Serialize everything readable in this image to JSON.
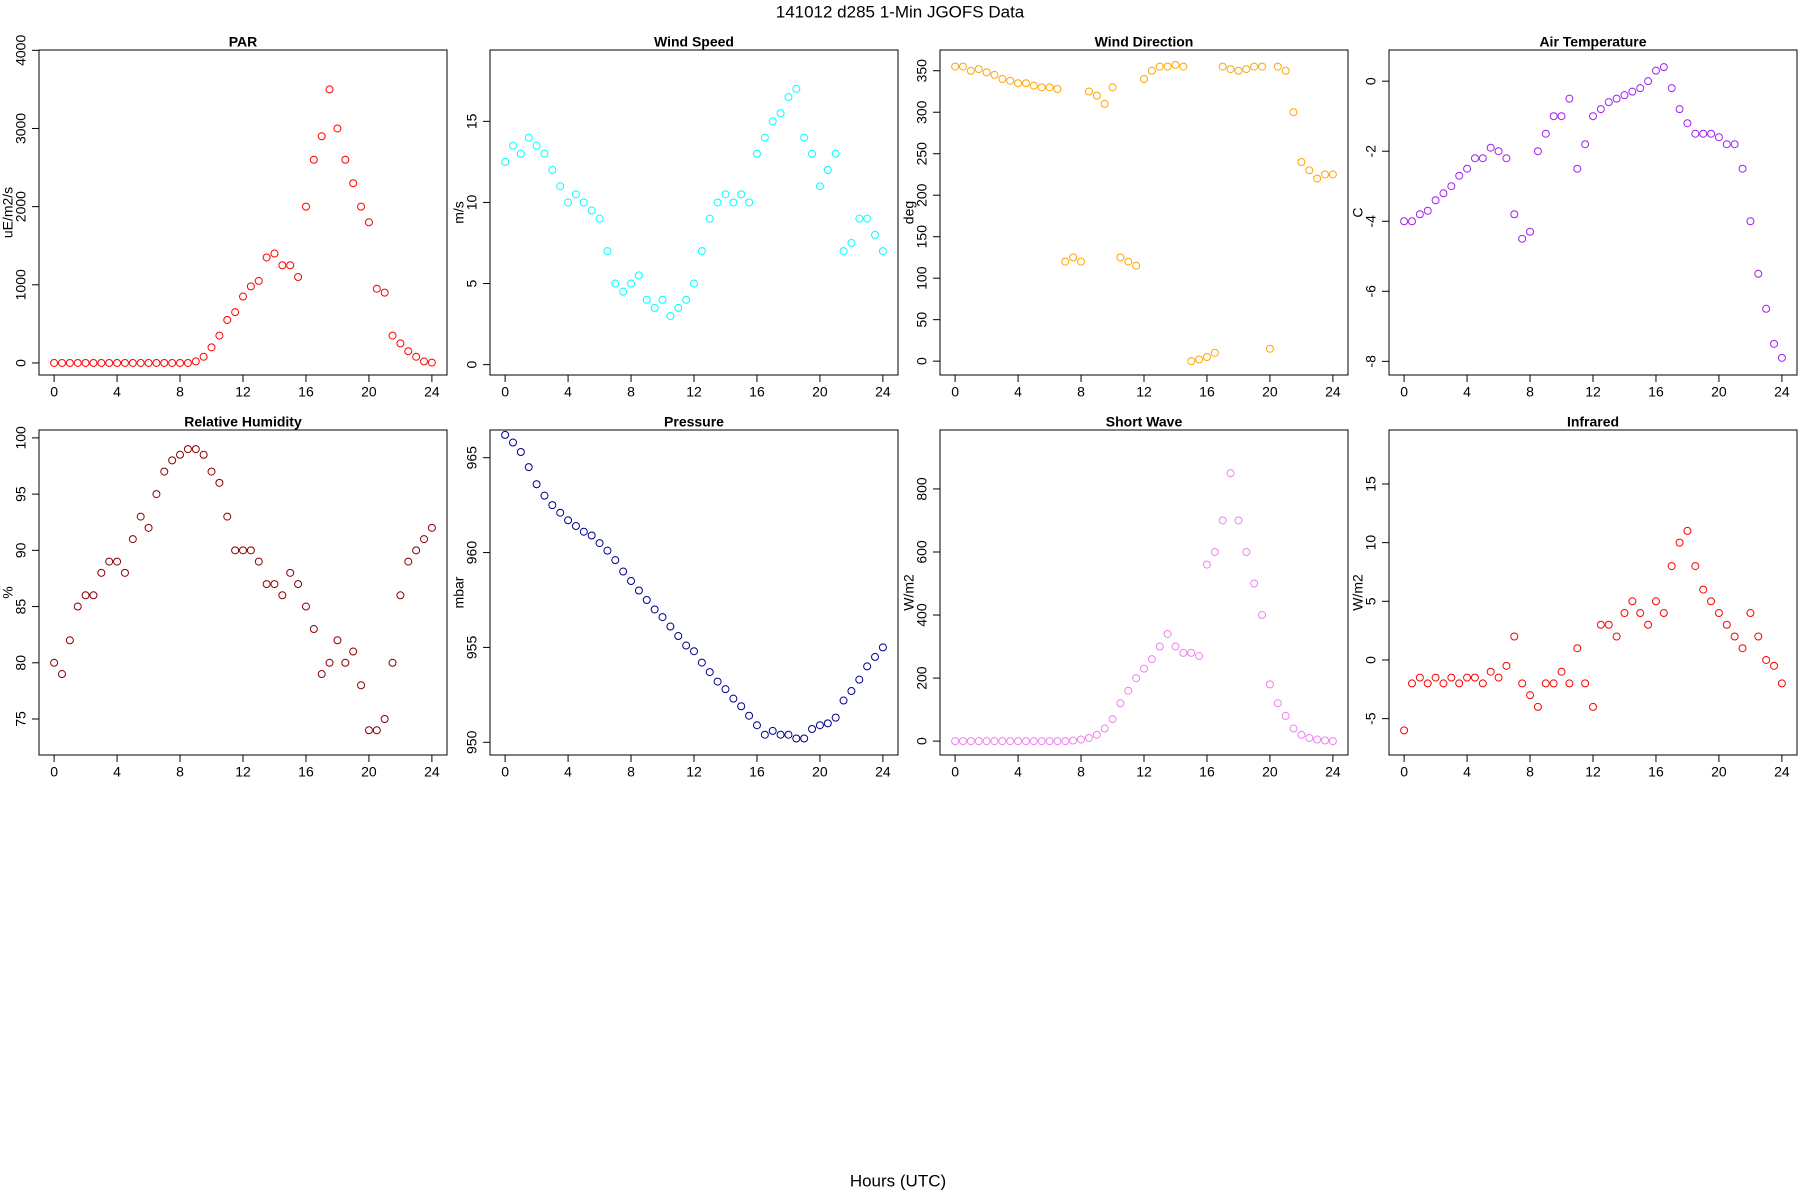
{
  "title": "141012   d285   1-Min  JGOFS Data",
  "x_label": "Hours (UTC)",
  "chart_data": [
    {
      "type": "scatter",
      "title": "PAR",
      "y_label": "uE/m2/s",
      "color": "#ff0000",
      "x": [
        0,
        0.5,
        1,
        1.5,
        2,
        2.5,
        3,
        3.5,
        4,
        4.5,
        5,
        5.5,
        6,
        6.5,
        7,
        7.5,
        8,
        8.5,
        9,
        9.5,
        10,
        10.5,
        11,
        11.5,
        12,
        12.5,
        13,
        13.5,
        14,
        14.5,
        15,
        15.5,
        16,
        16.5,
        17,
        17.5,
        18,
        18.5,
        19,
        19.5,
        20,
        20.5,
        21,
        21.5,
        22,
        22.5,
        23,
        23.5,
        24
      ],
      "values": [
        0,
        0,
        0,
        0,
        0,
        0,
        0,
        0,
        0,
        0,
        0,
        0,
        0,
        0,
        0,
        0,
        0,
        0,
        20,
        80,
        200,
        350,
        550,
        650,
        850,
        980,
        1050,
        1350,
        1400,
        1250,
        1250,
        1100,
        2000,
        2600,
        2900,
        3500,
        3000,
        2600,
        2300,
        2000,
        1800,
        950,
        900,
        350,
        250,
        150,
        80,
        20,
        5
      ],
      "xlim": [
        -0.96,
        24.96
      ],
      "xticks": [
        0,
        4,
        8,
        12,
        16,
        20,
        24
      ],
      "ylim": [
        -154,
        4004
      ],
      "yticks": [
        0,
        1000,
        2000,
        3000,
        4000
      ]
    },
    {
      "type": "scatter",
      "title": "Wind Speed",
      "y_label": "m/s",
      "color": "#00ffff",
      "x": [
        0,
        0.5,
        1,
        1.5,
        2,
        2.5,
        3,
        3.5,
        4,
        4.5,
        5,
        5.5,
        6,
        6.5,
        7,
        7.5,
        8,
        8.5,
        9,
        9.5,
        10,
        10.5,
        11,
        11.5,
        12,
        12.5,
        13,
        13.5,
        14,
        14.5,
        15,
        15.5,
        16,
        16.5,
        17,
        17.5,
        18,
        18.5,
        19,
        19.5,
        20,
        20.5,
        21,
        21.5,
        22,
        22.5,
        23,
        23.5,
        24
      ],
      "values": [
        12.5,
        13.5,
        13,
        14,
        13.5,
        13,
        12,
        11,
        10,
        10.5,
        10,
        9.5,
        9,
        7,
        5,
        4.5,
        5,
        5.5,
        4,
        3.5,
        4,
        3,
        3.5,
        4,
        5,
        7,
        9,
        10,
        10.5,
        10,
        10.5,
        10,
        13,
        14,
        15,
        15.5,
        16.5,
        17,
        14,
        13,
        11,
        12,
        13,
        7,
        7.5,
        9,
        9,
        8,
        7
      ],
      "xlim": [
        -0.96,
        24.96
      ],
      "xticks": [
        0,
        4,
        8,
        12,
        16,
        20,
        24
      ],
      "ylim": [
        -0.64,
        19.4
      ],
      "yticks": [
        0,
        5,
        10,
        15
      ]
    },
    {
      "type": "scatter",
      "title": "Wind Direction",
      "y_label": "deg",
      "color": "#ffa500",
      "x": [
        0,
        0.5,
        1,
        1.5,
        2,
        2.5,
        3,
        3.5,
        4,
        4.5,
        5,
        5.5,
        6,
        6.5,
        7,
        7.5,
        8,
        8.5,
        9,
        9.5,
        10,
        10.5,
        11,
        11.5,
        12,
        12.5,
        13,
        13.5,
        14,
        14.5,
        15,
        15.5,
        16,
        16.5,
        17,
        17.5,
        18,
        18.5,
        19,
        19.5,
        20,
        20.5,
        21,
        21.5,
        22,
        22.5,
        23,
        23.5,
        24
      ],
      "values": [
        355,
        355,
        350,
        352,
        348,
        345,
        340,
        338,
        335,
        335,
        332,
        330,
        330,
        328,
        120,
        125,
        120,
        325,
        320,
        310,
        330,
        125,
        120,
        115,
        340,
        350,
        355,
        355,
        357,
        355,
        0,
        2,
        5,
        10,
        355,
        352,
        350,
        352,
        355,
        355,
        15,
        355,
        350,
        300,
        240,
        230,
        220,
        225,
        225
      ],
      "xlim": [
        -0.96,
        24.96
      ],
      "xticks": [
        0,
        4,
        8,
        12,
        16,
        20,
        24
      ],
      "ylim": [
        -16.7,
        375
      ],
      "yticks": [
        0,
        50,
        100,
        150,
        200,
        250,
        300,
        350
      ]
    },
    {
      "type": "scatter",
      "title": "Air Temperature",
      "y_label": "C",
      "color": "#a020f0",
      "x": [
        0,
        0.5,
        1,
        1.5,
        2,
        2.5,
        3,
        3.5,
        4,
        4.5,
        5,
        5.5,
        6,
        6.5,
        7,
        7.5,
        8,
        8.5,
        9,
        9.5,
        10,
        10.5,
        11,
        11.5,
        12,
        12.5,
        13,
        13.5,
        14,
        14.5,
        15,
        15.5,
        16,
        16.5,
        17,
        17.5,
        18,
        18.5,
        19,
        19.5,
        20,
        20.5,
        21,
        21.5,
        22,
        22.5,
        23,
        23.5,
        24
      ],
      "values": [
        -4,
        -4,
        -3.8,
        -3.7,
        -3.4,
        -3.2,
        -3,
        -2.7,
        -2.5,
        -2.2,
        -2.2,
        -1.9,
        -2,
        -2.2,
        -3.8,
        -4.5,
        -4.3,
        -2,
        -1.5,
        -1,
        -1,
        -0.5,
        -2.5,
        -1.8,
        -1,
        -0.8,
        -0.6,
        -0.5,
        -0.4,
        -0.3,
        -0.2,
        0,
        0.3,
        0.4,
        -0.2,
        -0.8,
        -1.2,
        -1.5,
        -1.5,
        -1.5,
        -1.6,
        -1.8,
        -1.8,
        -2.5,
        -4,
        -5.5,
        -6.5,
        -7.5,
        -7.9
      ],
      "xlim": [
        -0.96,
        24.96
      ],
      "xticks": [
        0,
        4,
        8,
        12,
        16,
        20,
        24
      ],
      "ylim": [
        -8.39,
        0.89
      ],
      "yticks": [
        -8,
        -6,
        -4,
        -2,
        0
      ]
    },
    {
      "type": "scatter",
      "title": "Relative Humidity",
      "y_label": "%",
      "color": "#8b0000",
      "x": [
        0,
        0.5,
        1,
        1.5,
        2,
        2.5,
        3,
        3.5,
        4,
        4.5,
        5,
        5.5,
        6,
        6.5,
        7,
        7.5,
        8,
        8.5,
        9,
        9.5,
        10,
        10.5,
        11,
        11.5,
        12,
        12.5,
        13,
        13.5,
        14,
        14.5,
        15,
        15.5,
        16,
        16.5,
        17,
        17.5,
        18,
        18.5,
        19,
        19.5,
        20,
        20.5,
        21,
        21.5,
        22,
        22.5,
        23,
        23.5,
        24
      ],
      "values": [
        80,
        79,
        82,
        85,
        86,
        86,
        88,
        89,
        89,
        88,
        91,
        93,
        92,
        95,
        97,
        98,
        98.5,
        99,
        99,
        98.5,
        97,
        96,
        93,
        90,
        90,
        90,
        89,
        87,
        87,
        86,
        88,
        87,
        85,
        83,
        79,
        80,
        82,
        80,
        81,
        78,
        74,
        74,
        75,
        80,
        86,
        89,
        90,
        91,
        92
      ],
      "xlim": [
        -0.96,
        24.96
      ],
      "xticks": [
        0,
        4,
        8,
        12,
        16,
        20,
        24
      ],
      "ylim": [
        71.8,
        100.7
      ],
      "yticks": [
        75,
        80,
        85,
        90,
        95,
        100
      ]
    },
    {
      "type": "scatter",
      "title": "Pressure",
      "y_label": "mbar",
      "color": "#00008b",
      "x": [
        0,
        0.5,
        1,
        1.5,
        2,
        2.5,
        3,
        3.5,
        4,
        4.5,
        5,
        5.5,
        6,
        6.5,
        7,
        7.5,
        8,
        8.5,
        9,
        9.5,
        10,
        10.5,
        11,
        11.5,
        12,
        12.5,
        13,
        13.5,
        14,
        14.5,
        15,
        15.5,
        16,
        16.5,
        17,
        17.5,
        18,
        18.5,
        19,
        19.5,
        20,
        20.5,
        21,
        21.5,
        22,
        22.5,
        23,
        23.5,
        24
      ],
      "values": [
        966.2,
        965.8,
        965.3,
        964.5,
        963.6,
        963,
        962.5,
        962.1,
        961.7,
        961.4,
        961.1,
        960.9,
        960.5,
        960.1,
        959.6,
        959,
        958.5,
        958,
        957.5,
        957,
        956.6,
        956.1,
        955.6,
        955.1,
        954.8,
        954.2,
        953.7,
        953.2,
        952.8,
        952.3,
        951.9,
        951.4,
        950.9,
        950.4,
        950.6,
        950.4,
        950.4,
        950.2,
        950.2,
        950.7,
        950.9,
        951,
        951.3,
        952.2,
        952.7,
        953.3,
        954,
        954.5,
        955
      ],
      "xlim": [
        -0.96,
        24.96
      ],
      "xticks": [
        0,
        4,
        8,
        12,
        16,
        20,
        24
      ],
      "ylim": [
        949.33,
        966.46
      ],
      "yticks": [
        950,
        955,
        960,
        965
      ]
    },
    {
      "type": "scatter",
      "title": "Short Wave",
      "y_label": "W/m2",
      "color": "#ee82ee",
      "x": [
        0,
        0.5,
        1,
        1.5,
        2,
        2.5,
        3,
        3.5,
        4,
        4.5,
        5,
        5.5,
        6,
        6.5,
        7,
        7.5,
        8,
        8.5,
        9,
        9.5,
        10,
        10.5,
        11,
        11.5,
        12,
        12.5,
        13,
        13.5,
        14,
        14.5,
        15,
        15.5,
        16,
        16.5,
        17,
        17.5,
        18,
        18.5,
        19,
        19.5,
        20,
        20.5,
        21,
        21.5,
        22,
        22.5,
        23,
        23.5,
        24
      ],
      "values": [
        0,
        0,
        0,
        0,
        0,
        0,
        0,
        0,
        0,
        0,
        0,
        0,
        0,
        0,
        0,
        2,
        5,
        10,
        20,
        40,
        70,
        120,
        160,
        200,
        230,
        260,
        300,
        340,
        300,
        280,
        280,
        270,
        560,
        600,
        700,
        850,
        700,
        600,
        500,
        400,
        180,
        120,
        80,
        40,
        20,
        10,
        5,
        2,
        0
      ],
      "xlim": [
        -0.96,
        24.96
      ],
      "xticks": [
        0,
        4,
        8,
        12,
        16,
        20,
        24
      ],
      "ylim": [
        -44,
        987
      ],
      "yticks": [
        0,
        200,
        400,
        600,
        800
      ]
    },
    {
      "type": "scatter",
      "title": "Infrared",
      "y_label": "W/m2",
      "color": "#ff0000",
      "x": [
        0,
        0.5,
        1,
        1.5,
        2,
        2.5,
        3,
        3.5,
        4,
        4.5,
        5,
        5.5,
        6,
        6.5,
        7,
        7.5,
        8,
        8.5,
        9,
        9.5,
        10,
        10.5,
        11,
        11.5,
        12,
        12.5,
        13,
        13.5,
        14,
        14.5,
        15,
        15.5,
        16,
        16.5,
        17,
        17.5,
        18,
        18.5,
        19,
        19.5,
        20,
        20.5,
        21,
        21.5,
        22,
        22.5,
        23,
        23.5,
        24
      ],
      "values": [
        -6,
        -2,
        -1.5,
        -2,
        -1.5,
        -2,
        -1.5,
        -2,
        -1.5,
        -1.5,
        -2,
        -1,
        -1.5,
        -0.5,
        2,
        -2,
        -3,
        -4,
        -2,
        -2,
        -1,
        -2,
        1,
        -2,
        -4,
        3,
        3,
        2,
        4,
        5,
        4,
        3,
        5,
        4,
        8,
        10,
        11,
        8,
        6,
        5,
        4,
        3,
        2,
        1,
        4,
        2,
        0,
        -0.5,
        -2
      ],
      "xlim": [
        -0.96,
        24.96
      ],
      "xticks": [
        0,
        4,
        8,
        12,
        16,
        20,
        24
      ],
      "ylim": [
        -8.1,
        19.6
      ],
      "yticks": [
        -5,
        0,
        5,
        10,
        15
      ]
    }
  ]
}
